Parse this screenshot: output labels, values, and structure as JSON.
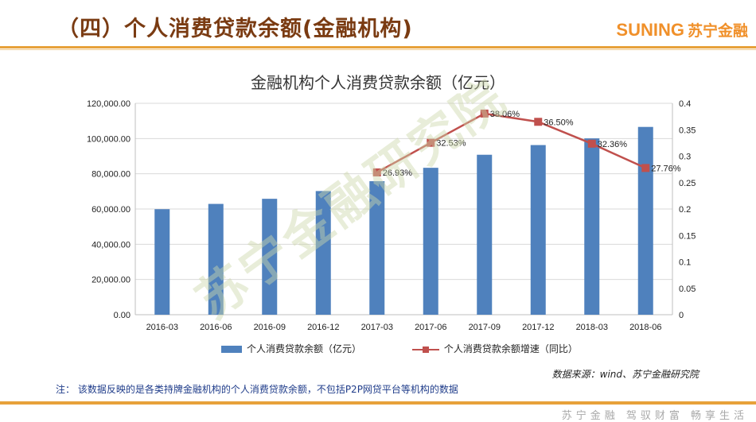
{
  "header": {
    "title": "（四）个人消费贷款余额(金融机构)",
    "logo_en": "SUNING",
    "logo_cn": "苏宁金融"
  },
  "watermark": "苏宁金融研究院",
  "chart_data": {
    "type": "bar+line",
    "title": "金融机构个人消费贷款余额（亿元）",
    "categories": [
      "2016-03",
      "2016-06",
      "2016-09",
      "2016-12",
      "2017-03",
      "2017-06",
      "2017-09",
      "2017-12",
      "2018-03",
      "2018-06"
    ],
    "series": [
      {
        "name": "个人消费贷款余额（亿元）",
        "type": "bar",
        "axis": "left",
        "color": "#4f81bd",
        "values": [
          59900,
          62900,
          65800,
          70200,
          75800,
          83400,
          90800,
          96300,
          100100,
          106600
        ]
      },
      {
        "name": "个人消费贷款余额增速（同比）",
        "type": "line",
        "axis": "right",
        "color": "#c0504d",
        "values": [
          null,
          null,
          null,
          null,
          0.2693,
          0.3253,
          0.3806,
          0.365,
          0.3236,
          0.2776
        ],
        "labels": [
          "",
          "",
          "",
          "",
          "26.93%",
          "32.53%",
          "38.06%",
          "36.50%",
          "32.36%",
          "27.76%"
        ]
      }
    ],
    "y_left": {
      "min": 0,
      "max": 120000,
      "ticks": [
        0,
        20000,
        40000,
        60000,
        80000,
        100000,
        120000
      ],
      "tick_labels": [
        "0.00",
        "20,000.00",
        "40,000.00",
        "60,000.00",
        "80,000.00",
        "100,000.00",
        "120,000.00"
      ]
    },
    "y_right": {
      "min": 0,
      "max": 0.4,
      "ticks": [
        0,
        0.05,
        0.1,
        0.15,
        0.2,
        0.25,
        0.3,
        0.35,
        0.4
      ],
      "tick_labels": [
        "0",
        "0.05",
        "0.1",
        "0.15",
        "0.2",
        "0.25",
        "0.3",
        "0.35",
        "0.4"
      ]
    },
    "grid": true,
    "legend_position": "bottom"
  },
  "source": "数据来源：wind、苏宁金融研究院",
  "note": "注：  该数据反映的是各类持牌金融机构的个人消费贷款余额，不包括P2P网贷平台等机构的数据",
  "footer": "苏宁金融  驾驭财富  畅享生活"
}
